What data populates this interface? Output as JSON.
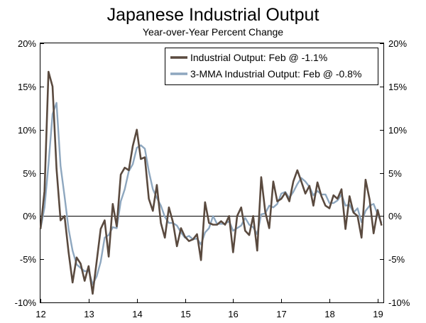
{
  "chart_data": {
    "type": "line",
    "title": "Japanese Industrial Output",
    "subtitle": "Year-over-Year Percent Change",
    "xlabel": "",
    "ylabel": "",
    "x_start": 2012.0,
    "x_step": 0.083333,
    "xlim": [
      2012.0,
      2019.12
    ],
    "ylim": [
      -10,
      20
    ],
    "grid": false,
    "legend_position": "top-right",
    "y_ticks": [
      -10,
      -5,
      0,
      5,
      10,
      15,
      20
    ],
    "y_tick_labels": [
      "-10%",
      "-5%",
      "0%",
      "5%",
      "10%",
      "15%",
      "20%"
    ],
    "x_ticks": [
      2012,
      2013,
      2014,
      2015,
      2016,
      2017,
      2018,
      2019
    ],
    "x_tick_labels": [
      "12",
      "13",
      "14",
      "15",
      "16",
      "17",
      "18",
      "19"
    ],
    "series": [
      {
        "name": "Industrial Output: Feb @ -1.1%",
        "color": "#5a4a3f",
        "values": [
          -1.5,
          2.9,
          16.7,
          15.0,
          5.5,
          -0.5,
          0.0,
          -4.2,
          -7.7,
          -4.8,
          -5.5,
          -7.5,
          -5.8,
          -9.0,
          -5.3,
          -1.5,
          -0.5,
          -4.7,
          1.4,
          -1.2,
          4.8,
          5.6,
          5.3,
          8.1,
          10.0,
          6.6,
          6.8,
          2.0,
          0.6,
          3.6,
          -0.8,
          -2.5,
          1.0,
          -0.7,
          -3.5,
          -1.4,
          -2.4,
          -2.9,
          -2.7,
          -2.1,
          -5.1,
          1.6,
          -0.8,
          -1.0,
          -1.0,
          -0.6,
          -1.0,
          0.0,
          -4.2,
          0.0,
          1.0,
          -1.7,
          -2.2,
          0.0,
          -4.0,
          4.5,
          0.5,
          -1.4,
          4.0,
          1.7,
          2.0,
          2.7,
          1.7,
          4.0,
          5.3,
          4.0,
          2.6,
          3.5,
          1.2,
          3.9,
          2.3,
          1.2,
          0.9,
          2.4,
          2.0,
          3.1,
          -1.5,
          2.3,
          0.4,
          0.0,
          -2.5,
          4.2,
          1.9,
          -2.0,
          0.7,
          -1.1
        ]
      },
      {
        "name": "3-MMA Industrial Output: Feb @ -0.8%",
        "color": "#8ea7bf",
        "values": [
          -1.5,
          1.0,
          6.0,
          11.8,
          13.1,
          5.8,
          2.3,
          -1.5,
          -4.0,
          -5.6,
          -6.0,
          -6.4,
          -6.3,
          -7.9,
          -7.0,
          -5.3,
          -2.5,
          -2.2,
          -1.3,
          -1.4,
          1.7,
          3.1,
          5.2,
          6.0,
          7.9,
          8.2,
          7.8,
          5.2,
          3.1,
          2.1,
          1.2,
          -0.1,
          -0.8,
          -0.8,
          -1.1,
          -1.9,
          -2.5,
          -2.3,
          -2.7,
          -2.6,
          -3.3,
          -1.9,
          -1.4,
          0.0,
          -0.9,
          -0.9,
          -0.9,
          -0.6,
          -1.7,
          -1.4,
          -1.1,
          -0.2,
          -1.0,
          -1.3,
          -2.1,
          0.2,
          0.3,
          1.2,
          1.0,
          1.4,
          2.6,
          2.8,
          2.1,
          2.8,
          3.7,
          4.4,
          4.0,
          3.4,
          2.4,
          2.9,
          2.5,
          2.5,
          1.5,
          1.5,
          1.8,
          2.5,
          1.2,
          1.3,
          0.4,
          0.9,
          -0.7,
          0.6,
          1.2,
          1.4,
          0.2,
          -0.8
        ]
      }
    ]
  }
}
